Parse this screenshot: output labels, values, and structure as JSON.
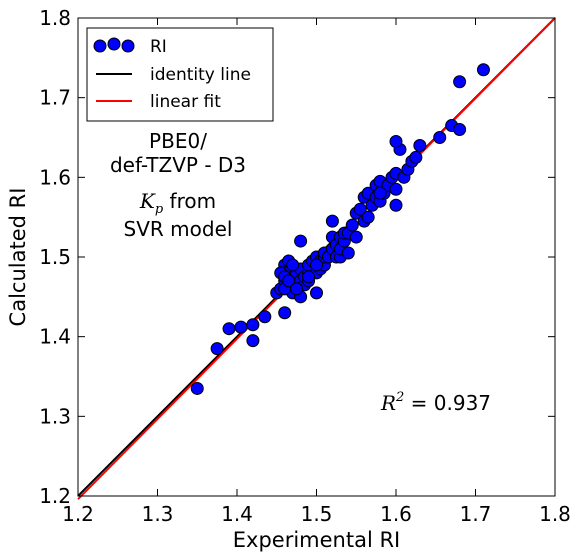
{
  "chart_data": {
    "type": "scatter",
    "xlabel": "Experimental RI",
    "ylabel": "Calculated RI",
    "xlim": [
      1.2,
      1.8
    ],
    "ylim": [
      1.2,
      1.8
    ],
    "xticks": [
      "1.2",
      "1.3",
      "1.4",
      "1.5",
      "1.6",
      "1.7",
      "1.8"
    ],
    "yticks": [
      "1.2",
      "1.3",
      "1.4",
      "1.5",
      "1.6",
      "1.7",
      "1.8"
    ],
    "grid": false,
    "legend_position": "top-left",
    "legend": [
      {
        "label": "RI",
        "marker": "circle",
        "color": "#0000ff"
      },
      {
        "label": "identity line",
        "marker": "line",
        "color": "#000000"
      },
      {
        "label": "linear fit",
        "marker": "line",
        "color": "#ff0000"
      }
    ],
    "annotations": {
      "method_line1": "PBE0/",
      "method_line2": "def-TZVP - D3",
      "kp_symbol": "K",
      "kp_sub": "p",
      "kp_suffix": " from",
      "model": "SVR model",
      "r2_symbol": "R",
      "r2_sup": "2",
      "r2_text": " = 0.937"
    },
    "identity_line": {
      "x": [
        1.2,
        1.8
      ],
      "y": [
        1.2,
        1.8
      ]
    },
    "linear_fit": {
      "x": [
        1.2,
        1.8
      ],
      "y": [
        1.196,
        1.8
      ]
    },
    "series": [
      {
        "name": "RI",
        "color": "#0000ff",
        "x": [
          1.35,
          1.375,
          1.39,
          1.405,
          1.42,
          1.42,
          1.435,
          1.45,
          1.455,
          1.46,
          1.46,
          1.46,
          1.465,
          1.46,
          1.47,
          1.47,
          1.47,
          1.475,
          1.475,
          1.48,
          1.48,
          1.48,
          1.485,
          1.485,
          1.49,
          1.49,
          1.49,
          1.495,
          1.5,
          1.5,
          1.5,
          1.505,
          1.505,
          1.51,
          1.51,
          1.51,
          1.515,
          1.52,
          1.52,
          1.525,
          1.525,
          1.53,
          1.53,
          1.53,
          1.535,
          1.535,
          1.54,
          1.54,
          1.545,
          1.55,
          1.55,
          1.555,
          1.56,
          1.56,
          1.565,
          1.565,
          1.57,
          1.575,
          1.575,
          1.58,
          1.58,
          1.585,
          1.59,
          1.595,
          1.6,
          1.6,
          1.6,
          1.605,
          1.61,
          1.615,
          1.62,
          1.625,
          1.63,
          1.655,
          1.67,
          1.68,
          1.68,
          1.71,
          1.48,
          1.52,
          1.455,
          1.5,
          1.46,
          1.47,
          1.49,
          1.46,
          1.465,
          1.475,
          1.58,
          1.6
        ],
        "y": [
          1.335,
          1.385,
          1.41,
          1.412,
          1.415,
          1.395,
          1.425,
          1.455,
          1.46,
          1.43,
          1.47,
          1.49,
          1.495,
          1.48,
          1.455,
          1.465,
          1.475,
          1.46,
          1.48,
          1.45,
          1.47,
          1.485,
          1.465,
          1.475,
          1.47,
          1.48,
          1.49,
          1.495,
          1.455,
          1.48,
          1.5,
          1.485,
          1.495,
          1.49,
          1.5,
          1.505,
          1.5,
          1.51,
          1.525,
          1.5,
          1.515,
          1.5,
          1.51,
          1.525,
          1.52,
          1.53,
          1.505,
          1.53,
          1.54,
          1.525,
          1.555,
          1.56,
          1.545,
          1.575,
          1.55,
          1.58,
          1.565,
          1.575,
          1.59,
          1.57,
          1.595,
          1.58,
          1.59,
          1.6,
          1.565,
          1.585,
          1.605,
          1.635,
          1.6,
          1.61,
          1.62,
          1.625,
          1.64,
          1.65,
          1.665,
          1.66,
          1.72,
          1.735,
          1.52,
          1.545,
          1.48,
          1.49,
          1.475,
          1.49,
          1.475,
          1.46,
          1.47,
          1.46,
          1.58,
          1.645
        ]
      }
    ]
  }
}
